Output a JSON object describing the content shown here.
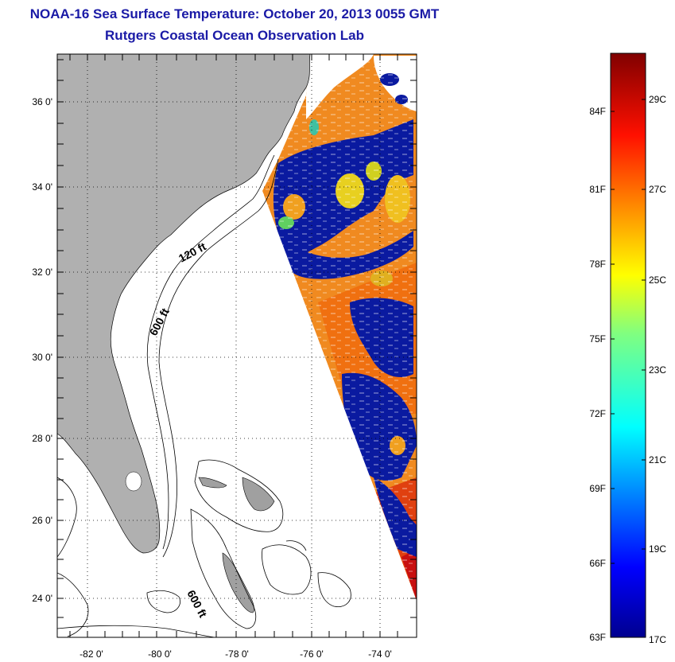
{
  "header": {
    "title": "NOAA-16 Sea Surface Temperature:  October 20, 2013 0055 GMT",
    "subtitle": "Rutgers Coastal Ocean Observation Lab"
  },
  "map": {
    "lat_labels": [
      "36 0'",
      "34 0'",
      "32 0'",
      "30 0'",
      "28 0'",
      "26 0'",
      "24 0'"
    ],
    "lon_labels": [
      "-82 0'",
      "-80 0'",
      "-78 0'",
      "-76 0'",
      "-74 0'"
    ],
    "depth_labels": [
      "120 ft",
      "600 ft",
      "600 ft"
    ],
    "colors": {
      "land": "#b0b0b0",
      "cold": "#0a1aa0",
      "warm": "#f07820",
      "gridline": "#000000"
    }
  },
  "colorbar": {
    "fahrenheit_labels": [
      "84F",
      "81F",
      "78F",
      "75F",
      "72F",
      "69F",
      "66F",
      "63F"
    ],
    "celsius_labels": [
      "29C",
      "27C",
      "25C",
      "23C",
      "21C",
      "19C",
      "17C"
    ]
  }
}
